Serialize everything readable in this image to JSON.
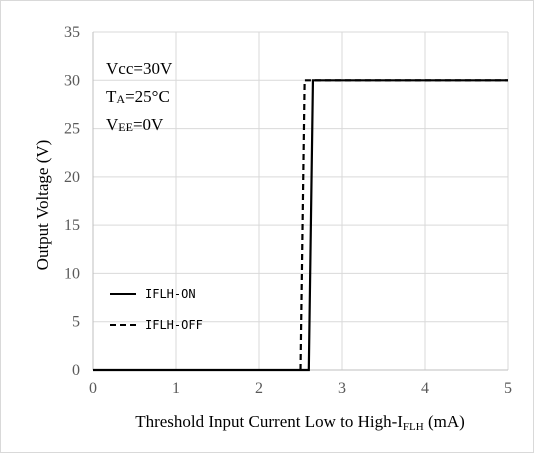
{
  "chart_data": {
    "type": "line",
    "title": "",
    "xlabel": "Threshold Input Current Low to High-I",
    "xlabel_subscript": "FLH",
    "xlabel_unit": " (mA)",
    "ylabel": "Output Voltage  (V)",
    "xlim": [
      0,
      5
    ],
    "ylim": [
      0,
      35
    ],
    "x_ticks": [
      0,
      1,
      2,
      3,
      4,
      5
    ],
    "y_ticks": [
      0,
      5,
      10,
      15,
      20,
      25,
      30,
      35
    ],
    "x_tick_labels": [
      "0",
      "1",
      "2",
      "3",
      "4",
      "5"
    ],
    "y_tick_labels": [
      "0",
      "5",
      "10",
      "15",
      "20",
      "25",
      "30",
      "35"
    ],
    "grid": true,
    "legend_position": "bottom-left",
    "conditions": [
      {
        "main": "Vcc=30V",
        "sub": "",
        "tail": ""
      },
      {
        "main": "T",
        "sub": "A",
        "tail": "=25°C"
      },
      {
        "main": "V",
        "sub": "EE",
        "tail": "=0V"
      }
    ],
    "series": [
      {
        "name": "IFLH-ON",
        "style": "solid",
        "color": "#000000",
        "x": [
          0,
          2.6,
          2.65,
          5
        ],
        "y": [
          0,
          0,
          30,
          30
        ]
      },
      {
        "name": "IFLH-OFF",
        "style": "dashed",
        "color": "#000000",
        "x": [
          2.5,
          2.55,
          5
        ],
        "y": [
          0,
          30,
          30
        ]
      }
    ]
  }
}
